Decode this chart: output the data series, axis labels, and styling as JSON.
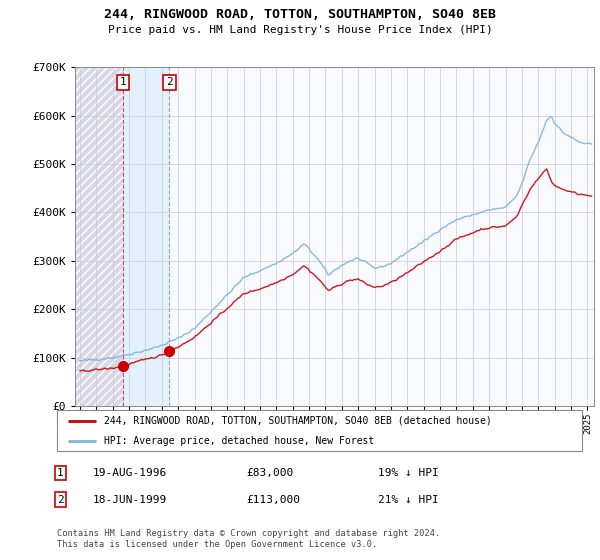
{
  "title": "244, RINGWOOD ROAD, TOTTON, SOUTHAMPTON, SO40 8EB",
  "subtitle": "Price paid vs. HM Land Registry's House Price Index (HPI)",
  "legend_line1": "244, RINGWOOD ROAD, TOTTON, SOUTHAMPTON, SO40 8EB (detached house)",
  "legend_line2": "HPI: Average price, detached house, New Forest",
  "transaction1_date": "19-AUG-1996",
  "transaction1_price": "£83,000",
  "transaction1_hpi": "19% ↓ HPI",
  "transaction1_x": 1996.637,
  "transaction1_y": 83000,
  "transaction2_date": "18-JUN-1999",
  "transaction2_price": "£113,000",
  "transaction2_hpi": "21% ↓ HPI",
  "transaction2_x": 1999.463,
  "transaction2_y": 113000,
  "copyright": "Contains HM Land Registry data © Crown copyright and database right 2024.\nThis data is licensed under the Open Government Licence v3.0.",
  "house_color": "#cc0000",
  "hpi_color": "#7fb3d9",
  "ylim": [
    0,
    700000
  ],
  "yticks": [
    0,
    100000,
    200000,
    300000,
    400000,
    500000,
    600000,
    700000
  ],
  "ytick_labels": [
    "£0",
    "£100K",
    "£200K",
    "£300K",
    "£400K",
    "£500K",
    "£600K",
    "£700K"
  ],
  "xlim_start": 1994.0,
  "xlim_end": 2025.3
}
